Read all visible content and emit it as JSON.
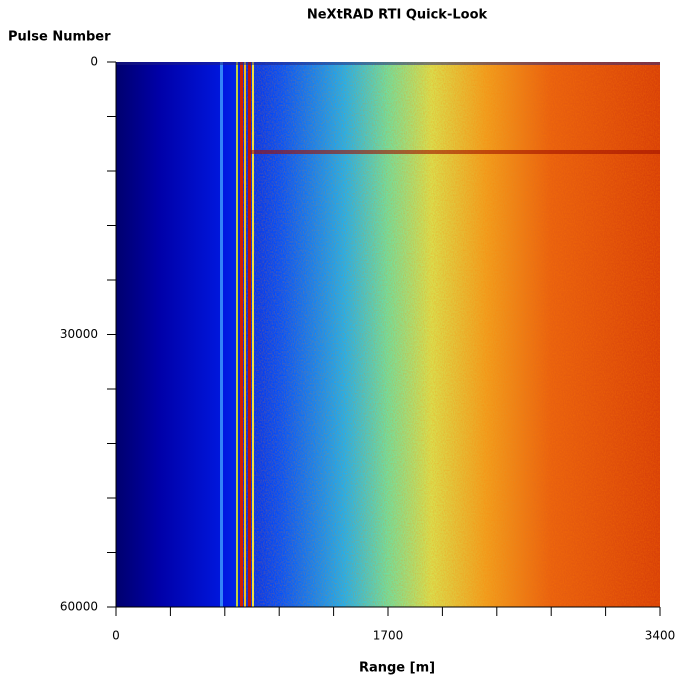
{
  "chart_data": {
    "type": "heatmap",
    "title": "NeXtRAD RTI Quick-Look",
    "xlabel": "Range [m]",
    "ylabel": "Pulse Number",
    "xlim": [
      0,
      3400
    ],
    "xticks": [
      0,
      1700,
      3400
    ],
    "xminor_ticks": [
      340,
      680,
      1020,
      1360,
      2040,
      2380,
      2720,
      3060
    ],
    "ylim": [
      60000,
      0
    ],
    "yticks": [
      0,
      30000,
      60000
    ],
    "yminor_ticks": [
      6000,
      12000,
      18000,
      24000,
      36000,
      42000,
      48000,
      54000
    ],
    "colormap": "jet"
  }
}
